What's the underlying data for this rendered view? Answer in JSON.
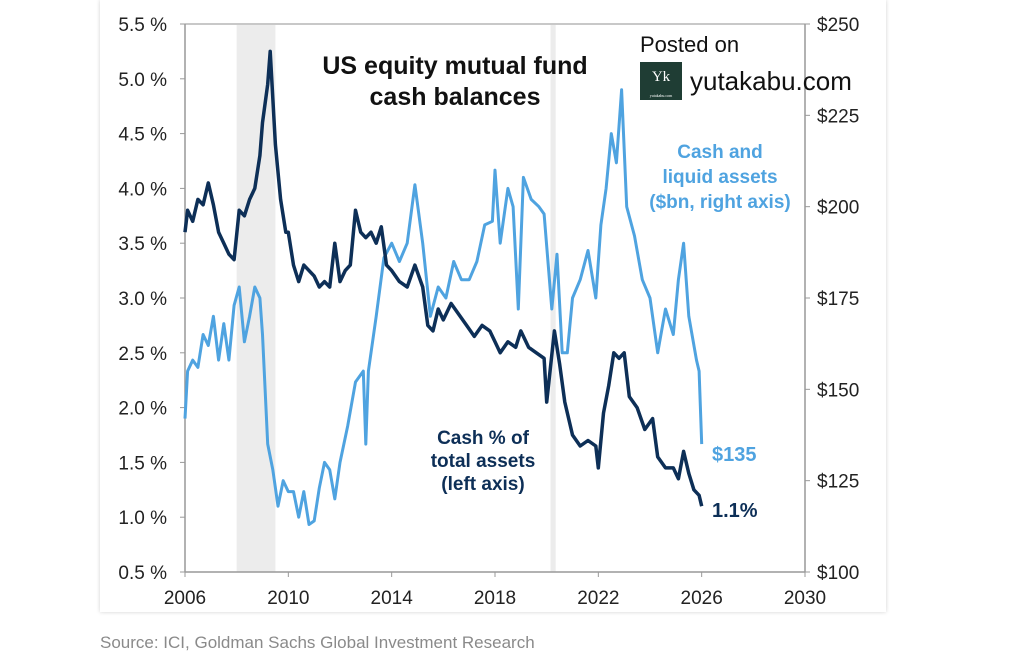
{
  "chart_data": {
    "type": "line",
    "title": "US equity mutual fund cash balances",
    "xlim": [
      2006,
      2030
    ],
    "x_ticks": [
      "2006",
      "2010",
      "2014",
      "2018",
      "2022",
      "2026",
      "2030"
    ],
    "ylim_left": [
      0.5,
      5.5
    ],
    "y_ticks_left": [
      "0.5 %",
      "1.0 %",
      "1.5 %",
      "2.0 %",
      "2.5 %",
      "3.0 %",
      "3.5 %",
      "4.0 %",
      "4.5 %",
      "5.0 %",
      "5.5 %"
    ],
    "ylim_right": [
      100,
      250
    ],
    "y_ticks_right": [
      "$100",
      "$125",
      "$150",
      "$175",
      "$200",
      "$225",
      "$250"
    ],
    "shaded_periods": [
      [
        2008.0,
        2009.5
      ],
      [
        2020.15,
        2020.35
      ]
    ],
    "series": [
      {
        "name": "Cash % of total assets (left axis)",
        "label_lines": [
          "Cash % of",
          "total assets",
          "(left axis)"
        ],
        "axis": "left",
        "color": "#0d2f57",
        "end_label": "1.1%",
        "x": [
          2006.0,
          2006.1,
          2006.3,
          2006.5,
          2006.7,
          2006.9,
          2007.1,
          2007.3,
          2007.5,
          2007.7,
          2007.9,
          2008.1,
          2008.3,
          2008.5,
          2008.7,
          2008.9,
          2009.0,
          2009.2,
          2009.3,
          2009.5,
          2009.7,
          2009.9,
          2010.0,
          2010.2,
          2010.4,
          2010.6,
          2010.8,
          2011.0,
          2011.2,
          2011.4,
          2011.6,
          2011.8,
          2012.0,
          2012.2,
          2012.4,
          2012.6,
          2012.8,
          2013.0,
          2013.2,
          2013.4,
          2013.6,
          2013.8,
          2014.0,
          2014.3,
          2014.6,
          2014.9,
          2015.2,
          2015.4,
          2015.6,
          2015.8,
          2016.0,
          2016.3,
          2016.6,
          2016.9,
          2017.2,
          2017.5,
          2017.8,
          2018.0,
          2018.2,
          2018.5,
          2018.8,
          2019.0,
          2019.3,
          2019.6,
          2019.9,
          2020.0,
          2020.3,
          2020.5,
          2020.7,
          2021.0,
          2021.3,
          2021.6,
          2021.9,
          2022.0,
          2022.2,
          2022.4,
          2022.6,
          2022.8,
          2023.0,
          2023.2,
          2023.5,
          2023.8,
          2024.1,
          2024.3,
          2024.6,
          2024.9,
          2025.1,
          2025.3,
          2025.5,
          2025.7,
          2025.9,
          2026.0
        ],
        "values": [
          3.6,
          3.8,
          3.7,
          3.9,
          3.85,
          4.05,
          3.85,
          3.6,
          3.5,
          3.4,
          3.35,
          3.8,
          3.75,
          3.9,
          4.0,
          4.3,
          4.6,
          4.95,
          5.25,
          4.4,
          3.9,
          3.6,
          3.6,
          3.3,
          3.15,
          3.3,
          3.25,
          3.2,
          3.1,
          3.15,
          3.1,
          3.5,
          3.15,
          3.25,
          3.3,
          3.8,
          3.6,
          3.55,
          3.6,
          3.5,
          3.65,
          3.3,
          3.25,
          3.15,
          3.1,
          3.3,
          3.1,
          2.75,
          2.7,
          2.9,
          2.8,
          2.95,
          2.85,
          2.75,
          2.65,
          2.75,
          2.7,
          2.6,
          2.5,
          2.6,
          2.55,
          2.7,
          2.55,
          2.5,
          2.45,
          2.05,
          2.7,
          2.4,
          2.05,
          1.75,
          1.65,
          1.7,
          1.65,
          1.45,
          1.95,
          2.2,
          2.5,
          2.45,
          2.5,
          2.1,
          2.0,
          1.8,
          1.9,
          1.55,
          1.45,
          1.45,
          1.35,
          1.6,
          1.4,
          1.25,
          1.2,
          1.1
        ]
      },
      {
        "name": "Cash and liquid assets ($bn, right axis)",
        "label_lines": [
          "Cash and",
          "liquid assets",
          "($bn, right axis)"
        ],
        "axis": "right",
        "color": "#4fa3e0",
        "end_label": "$135",
        "x": [
          2006.0,
          2006.1,
          2006.3,
          2006.5,
          2006.7,
          2006.9,
          2007.1,
          2007.3,
          2007.5,
          2007.7,
          2007.9,
          2008.1,
          2008.3,
          2008.5,
          2008.7,
          2008.9,
          2009.0,
          2009.2,
          2009.4,
          2009.6,
          2009.8,
          2010.0,
          2010.2,
          2010.4,
          2010.6,
          2010.8,
          2011.0,
          2011.2,
          2011.4,
          2011.6,
          2011.8,
          2012.0,
          2012.3,
          2012.6,
          2012.9,
          2013.0,
          2013.1,
          2013.4,
          2013.7,
          2014.0,
          2014.3,
          2014.6,
          2014.9,
          2015.2,
          2015.5,
          2015.8,
          2016.1,
          2016.4,
          2016.7,
          2017.0,
          2017.3,
          2017.6,
          2017.9,
          2018.0,
          2018.2,
          2018.5,
          2018.7,
          2018.9,
          2019.1,
          2019.4,
          2019.7,
          2019.9,
          2020.2,
          2020.4,
          2020.6,
          2020.8,
          2021.0,
          2021.3,
          2021.6,
          2021.9,
          2022.1,
          2022.3,
          2022.5,
          2022.7,
          2022.9,
          2023.1,
          2023.4,
          2023.7,
          2024.0,
          2024.3,
          2024.6,
          2024.9,
          2025.1,
          2025.3,
          2025.5,
          2025.8,
          2025.9,
          2026.0
        ],
        "values": [
          142,
          155,
          158,
          156,
          165,
          162,
          170,
          158,
          168,
          158,
          173,
          178,
          163,
          170,
          178,
          175,
          165,
          135,
          128,
          118,
          125,
          122,
          122,
          115,
          122,
          113,
          114,
          123,
          130,
          128,
          120,
          130,
          140,
          152,
          155,
          135,
          155,
          170,
          186,
          190,
          185,
          190,
          206,
          190,
          170,
          178,
          175,
          185,
          180,
          180,
          185,
          195,
          196,
          210,
          190,
          205,
          200,
          172,
          208,
          202,
          200,
          198,
          172,
          187,
          160,
          160,
          175,
          180,
          188,
          175,
          195,
          205,
          220,
          212,
          232,
          200,
          192,
          180,
          175,
          160,
          172,
          165,
          180,
          190,
          170,
          158,
          155,
          135
        ]
      }
    ]
  },
  "branding": {
    "posted": "Posted on",
    "site": "yutakabu.com",
    "logo_text": "Yk",
    "logo_small": "yutakabu.com"
  },
  "source": "Source: ICI, Goldman Sachs Global Investment Research"
}
